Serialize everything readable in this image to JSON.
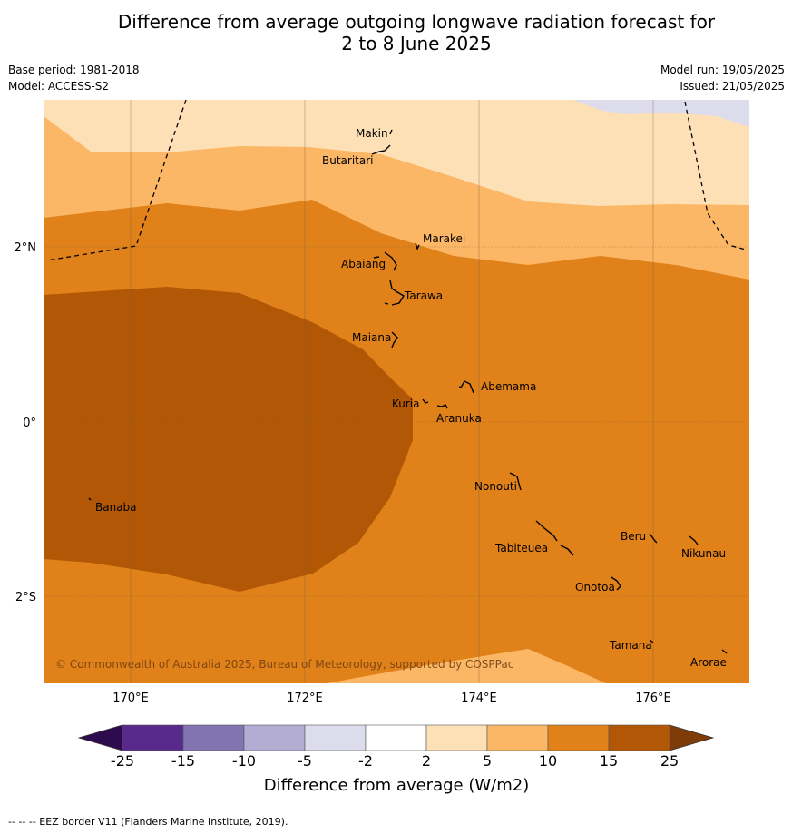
{
  "title": {
    "line1": "Difference from average outgoing longwave radiation forecast for",
    "line2": "2 to 8 June 2025"
  },
  "meta": {
    "base_period": "Base period: 1981-2018",
    "model": "Model: ACCESS-S2",
    "model_run": "Model run: 19/05/2025",
    "issued": "Issued: 21/05/2025"
  },
  "map": {
    "lon_ticks": [
      "170°E",
      "172°E",
      "174°E",
      "176°E"
    ],
    "lat_ticks": [
      "2°N",
      "0°",
      "2°S"
    ],
    "copyright": "© Commonwealth of Australia 2025, Bureau of Meteorology, supported by COSPPac",
    "islands": [
      "Makin",
      "Butaritari",
      "Marakei",
      "Abaiang",
      "Tarawa",
      "Maiana",
      "Abemama",
      "Kuria",
      "Aranuka",
      "Nonouti",
      "Banaba",
      "Beru",
      "Nikunau",
      "Tabiteuea",
      "Onotoa",
      "Tamana",
      "Arorae"
    ]
  },
  "colorbar": {
    "label": "Difference from average (W/m2)",
    "ticks": [
      "-25",
      "-15",
      "-10",
      "-5",
      "-2",
      "2",
      "5",
      "10",
      "15",
      "25"
    ],
    "colors": [
      "#582a8b",
      "#8274b0",
      "#b3acd3",
      "#dcdcec",
      "#ffffff",
      "#fde0b6",
      "#fbb765",
      "#e0811a",
      "#b25706"
    ],
    "extend_low": "#2e0b4f",
    "extend_high": "#7f3b08"
  },
  "footer": "--  --  -- EEZ border V11 (Flanders Marine Institute, 2019)."
}
